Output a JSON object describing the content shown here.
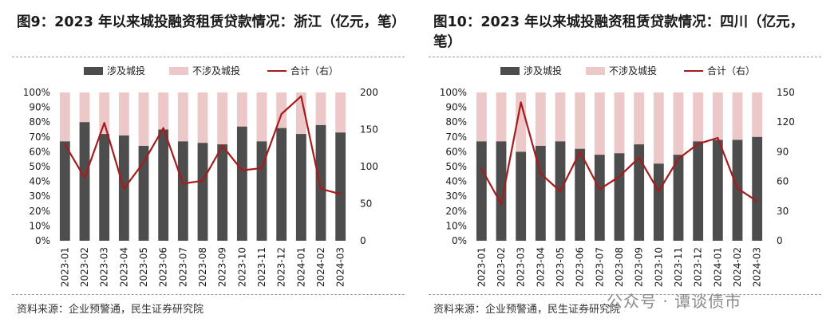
{
  "chart_data": [
    {
      "type": "bar",
      "title": "图9：2023 年以来城投融资租赁贷款情况：浙江（亿元，笔）",
      "source": "资料来源：企业预警通，民生证券研究院",
      "categories": [
        "2023-01",
        "2023-02",
        "2023-03",
        "2023-04",
        "2023-05",
        "2023-06",
        "2023-07",
        "2023-08",
        "2023-09",
        "2023-10",
        "2023-11",
        "2023-12",
        "2024-01",
        "2024-02",
        "2024-03"
      ],
      "series": [
        {
          "name": "涉及城投",
          "type": "bar",
          "axis": "left",
          "stack": "pct",
          "color": "#4d4d4d",
          "values": [
            67,
            80,
            72,
            71,
            64,
            75,
            67,
            66,
            65,
            77,
            67,
            76,
            72,
            78,
            73
          ]
        },
        {
          "name": "不涉及城投",
          "type": "bar",
          "axis": "left",
          "stack": "pct",
          "color": "#edc8c9",
          "values": [
            33,
            20,
            28,
            29,
            36,
            25,
            33,
            34,
            35,
            23,
            33,
            24,
            28,
            22,
            27
          ]
        },
        {
          "name": "合计（右）",
          "type": "line",
          "axis": "right",
          "color": "#a51c1c",
          "values": [
            130,
            85,
            159,
            70,
            106,
            152,
            77,
            81,
            128,
            95,
            98,
            171,
            195,
            70,
            63
          ]
        }
      ],
      "y_left": {
        "min": 0,
        "max": 100,
        "step": 10,
        "unit": "%"
      },
      "y_right": {
        "min": 0,
        "max": 200,
        "step": 50
      },
      "legend_position": "top"
    },
    {
      "type": "bar",
      "title": "图10：2023 年以来城投融资租赁贷款情况：四川（亿元，笔）",
      "source": "资料来源：企业预警通，民生证券研究院",
      "categories": [
        "2023-01",
        "2023-02",
        "2023-03",
        "2023-04",
        "2023-05",
        "2023-06",
        "2023-07",
        "2023-08",
        "2023-09",
        "2023-10",
        "2023-11",
        "2023-12",
        "2024-01",
        "2024-02",
        "2024-03"
      ],
      "series": [
        {
          "name": "涉及城投",
          "type": "bar",
          "axis": "left",
          "stack": "pct",
          "color": "#4d4d4d",
          "values": [
            67,
            67,
            60,
            64,
            67,
            62,
            58,
            59,
            65,
            52,
            58,
            67,
            68,
            68,
            70
          ]
        },
        {
          "name": "不涉及城投",
          "type": "bar",
          "axis": "left",
          "stack": "pct",
          "color": "#edc8c9",
          "values": [
            33,
            33,
            40,
            36,
            33,
            38,
            42,
            41,
            35,
            48,
            42,
            33,
            32,
            32,
            30
          ]
        },
        {
          "name": "合计（右）",
          "type": "line",
          "axis": "right",
          "color": "#a51c1c",
          "values": [
            73,
            37,
            140,
            68,
            50,
            90,
            52,
            65,
            84,
            50,
            83,
            98,
            104,
            53,
            40
          ]
        }
      ],
      "y_left": {
        "min": 0,
        "max": 100,
        "step": 10,
        "unit": "%"
      },
      "y_right": {
        "min": 0,
        "max": 150,
        "step": 30
      },
      "legend_position": "top"
    }
  ],
  "watermark": "公众号 · 谭谈债市"
}
